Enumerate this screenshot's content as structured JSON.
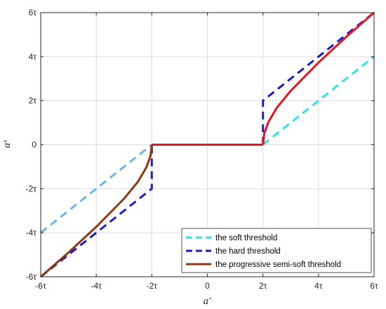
{
  "chart_data": {
    "type": "line",
    "xlabel": "a′",
    "ylabel": "aˢ",
    "xlim": [
      -6,
      6
    ],
    "ylim": [
      -6,
      6
    ],
    "x_ticks": [
      {
        "v": -6,
        "label": "-6τ"
      },
      {
        "v": -4,
        "label": "-4τ"
      },
      {
        "v": -2,
        "label": "-2τ"
      },
      {
        "v": 0,
        "label": "0"
      },
      {
        "v": 2,
        "label": "2τ"
      },
      {
        "v": 4,
        "label": "4τ"
      },
      {
        "v": 6,
        "label": "6τ"
      }
    ],
    "y_ticks": [
      {
        "v": -6,
        "label": "-6τ"
      },
      {
        "v": -4,
        "label": "-4τ"
      },
      {
        "v": -2,
        "label": "-2τ"
      },
      {
        "v": 0,
        "label": "0"
      },
      {
        "v": 2,
        "label": "2τ"
      },
      {
        "v": 4,
        "label": "4τ"
      },
      {
        "v": 6,
        "label": "6τ"
      }
    ],
    "grid": true,
    "legend_position": "bottom-right",
    "series": [
      {
        "name": "the soft threshold",
        "style": "dashed",
        "segments": [
          {
            "color": "#6ab4f0",
            "points": [
              [
                -6,
                -4
              ],
              [
                -2,
                0
              ]
            ]
          },
          {
            "color": "#ff3333",
            "points": [
              [
                -2,
                0
              ],
              [
                2,
                0
              ]
            ]
          },
          {
            "color": "#2ee6e6",
            "points": [
              [
                2,
                0
              ],
              [
                6,
                4
              ]
            ]
          }
        ]
      },
      {
        "name": "the hard threshold",
        "color": "#1a1acc",
        "style": "dashed",
        "segments": [
          {
            "points": [
              [
                -6,
                -6
              ],
              [
                -2,
                -2
              ],
              [
                -2,
                0
              ]
            ]
          },
          {
            "points": [
              [
                -2,
                0
              ],
              [
                2,
                0
              ]
            ]
          },
          {
            "points": [
              [
                2,
                0
              ],
              [
                2,
                2
              ],
              [
                6,
                6
              ]
            ]
          }
        ]
      },
      {
        "name": "the  progressive semi-soft threshold",
        "style": "solid",
        "segments": [
          {
            "color": "#8b3a12",
            "points": [
              [
                -6,
                -6
              ],
              [
                -5,
                -4.9
              ],
              [
                -4,
                -3.73
              ],
              [
                -3,
                -2.45
              ],
              [
                -2.5,
                -1.68
              ],
              [
                -2.2,
                -1.04
              ],
              [
                -2.05,
                -0.52
              ],
              [
                -2,
                0
              ]
            ]
          },
          {
            "color": "#e8161e",
            "points": [
              [
                -2,
                0
              ],
              [
                2,
                0
              ]
            ]
          },
          {
            "color": "#e8161e",
            "points": [
              [
                2,
                0
              ],
              [
                2.05,
                0.52
              ],
              [
                2.2,
                1.04
              ],
              [
                2.5,
                1.68
              ],
              [
                3,
                2.45
              ],
              [
                4,
                3.73
              ],
              [
                5,
                4.9
              ],
              [
                6,
                6
              ]
            ]
          }
        ]
      }
    ]
  }
}
